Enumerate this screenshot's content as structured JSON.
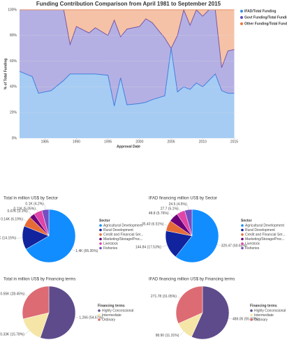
{
  "chart_data": [
    {
      "type": "area",
      "stacked": true,
      "title": "Funding Contribution Comparison from April 1981 to September 2015",
      "xlabel": "Approval Date",
      "ylabel": "% of Total Funding",
      "x": [
        1981,
        1983,
        1984,
        1986,
        1988,
        1989,
        1990,
        1992,
        1993,
        1995,
        1996,
        1997,
        1998,
        2000,
        2001,
        2002,
        2004,
        2005,
        2006,
        2007,
        2008,
        2009,
        2010,
        2011,
        2012,
        2013,
        2014,
        2015
      ],
      "series": [
        {
          "name": "IFAD/Total Funding",
          "color": "#3a8ee6",
          "values": [
            52,
            48,
            35,
            37,
            45,
            50,
            50,
            50,
            50,
            49,
            25,
            47,
            26,
            27,
            28,
            30,
            33,
            70,
            36,
            40,
            38,
            43,
            40,
            45,
            50,
            37,
            35,
            35
          ]
        },
        {
          "name": "Govt Funding/Total Funding",
          "color": "#5a4fc0",
          "values": [
            48,
            52,
            65,
            63,
            55,
            23,
            37,
            32,
            36,
            31,
            67,
            32,
            59,
            60,
            65,
            60,
            45,
            0,
            44,
            60,
            50,
            57,
            55,
            55,
            50,
            18,
            33,
            34
          ]
        },
        {
          "name": "Other Funding/Total Funding",
          "color": "#e8773c",
          "values": [
            0,
            0,
            0,
            0,
            0,
            27,
            13,
            18,
            14,
            20,
            8,
            21,
            15,
            13,
            7,
            10,
            22,
            30,
            20,
            0,
            12,
            0,
            5,
            0,
            0,
            45,
            32,
            31
          ]
        }
      ],
      "xlim": [
        1981,
        2015.5
      ],
      "xticks": [
        1985,
        1990,
        1995,
        2000,
        2005,
        2010,
        2015
      ],
      "ylim": [
        0,
        100
      ],
      "yticks": [
        {
          "value": 0,
          "label": "0%"
        },
        {
          "value": 20,
          "label": "20%"
        },
        {
          "value": 40,
          "label": "40%"
        },
        {
          "value": 60,
          "label": "60%"
        },
        {
          "value": 80,
          "label": "80%"
        },
        {
          "value": 100,
          "label": "100%"
        }
      ],
      "grid": true,
      "legend": "top-right"
    },
    {
      "type": "pie",
      "title": "Total in million US$ by Sector",
      "legend_title": "Sector",
      "categories": [
        "Agricultural Development",
        "Rural Development",
        "Credit and Financial Ser...",
        "Marketing/Storage/Proc...",
        "Livestock",
        "Fisheries"
      ],
      "values": [
        65.35,
        14.15,
        6.19,
        3.1,
        5.05,
        4.2
      ],
      "value_labels": [
        "1.4K (65.35%)",
        "0.31K (14.15%)",
        "0.14K (6.19%)",
        "0.07K (3.1%)",
        "0.11K (5.05%)",
        "0.1K (4.2%)"
      ],
      "colors": [
        "#118dff",
        "#12239e",
        "#e66c37",
        "#6b007b",
        "#e044a7",
        "#744ec2"
      ]
    },
    {
      "type": "pie",
      "title": "IFAD financing million US$ by Sector",
      "legend_title": "Sector",
      "categories": [
        "Agricultural Development",
        "Rural Development",
        "Credit and Financial Ser...",
        "Marketing/Storage/Proc...",
        "Livestock",
        "Fisheries"
      ],
      "values": [
        60.6,
        17.53,
        6.51,
        5.76,
        5.1,
        4.5
      ],
      "value_labels": [
        "329.47 (60.60%)",
        "144.84 (17.53%)",
        "35.40 (6.51%)",
        "48.8 (5.76%)",
        "27.7 (5.1%)",
        "24.5 (4.5%)"
      ],
      "colors": [
        "#118dff",
        "#12239e",
        "#e66c37",
        "#6b007b",
        "#e044a7",
        "#744ec2"
      ]
    },
    {
      "type": "pie",
      "title": "Total in million US$ by Financing terms",
      "legend_title": "Financing terms",
      "categories": [
        "Highly Concessional",
        "Intermediate",
        "Ordinary"
      ],
      "values": [
        54.67,
        15.78,
        28.45
      ],
      "value_labels": [
        "1,266 (54.67%)",
        "0.33K (15.78%)",
        "0.55K (28.45%)"
      ],
      "colors": [
        "#5e4b8b",
        "#f5e6a8",
        "#dd6b73"
      ]
    },
    {
      "type": "pie",
      "title": "IFAD financing million US$ by Financing terms",
      "legend_title": "Financing terms",
      "categories": [
        "Highly Concessional",
        "Intermediate",
        "Ordinary"
      ],
      "values": [
        55.6,
        11.31,
        31.05
      ],
      "value_labels": [
        "486.05 (55.60%)",
        "98.90 (11.31%)",
        "271.78 (31.05%)"
      ],
      "colors": [
        "#5e4b8b",
        "#f5e6a8",
        "#dd6b73"
      ]
    }
  ]
}
